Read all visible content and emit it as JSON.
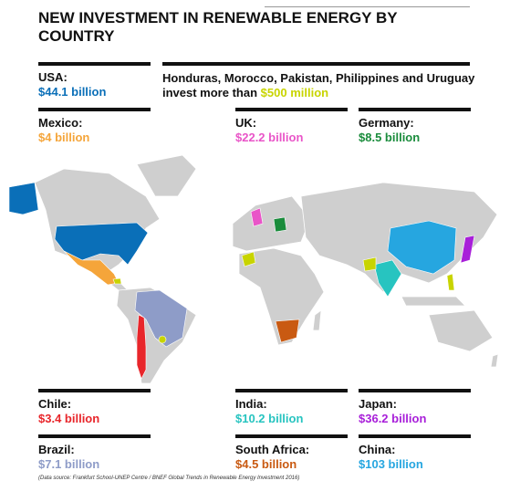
{
  "title": "NEW INVESTMENT IN RENEWABLE ENERGY BY COUNTRY",
  "countries": [
    {
      "name": "USA:",
      "amount": "$44.1 billion",
      "color": "#0a6fb8"
    },
    {
      "name": "Mexico:",
      "amount": "$4 billion",
      "color": "#f5a53a"
    },
    {
      "name": "UK:",
      "amount": "$22.2 billion",
      "color": "#e955c8"
    },
    {
      "name": "Germany:",
      "amount": "$8.5 billion",
      "color": "#1a8c3c"
    },
    {
      "name": "Chile:",
      "amount": "$3.4 billion",
      "color": "#e8262b"
    },
    {
      "name": "India:",
      "amount": "$10.2 billion",
      "color": "#27c4c0"
    },
    {
      "name": "Japan:",
      "amount": "$36.2 billion",
      "color": "#a81fd9"
    },
    {
      "name": "Brazil:",
      "amount": "$7.1 billion",
      "color": "#8e9cc8"
    },
    {
      "name": "South Africa:",
      "amount": "$4.5 billion",
      "color": "#c95a12"
    },
    {
      "name": "China:",
      "amount": "$103 billion",
      "color": "#26a6e0"
    }
  ],
  "note": {
    "text": "Honduras, Morocco, Pakistan, Philippines and Uruguay invest more than",
    "highlight": "$500 million",
    "color": "#c8d400"
  },
  "source": "(Data source: Frankfurt School-UNEP Centre / BNEF Global Trends in Renewable Energy Investment 2016)"
}
